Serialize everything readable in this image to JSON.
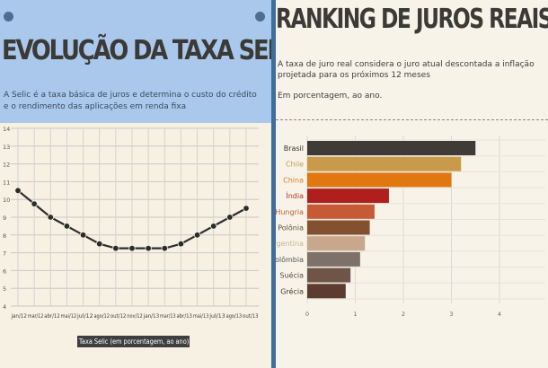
{
  "selic": {
    "title": "EVOLUÇÃO DA TAXA SELIC",
    "description": "A Selic é a taxa básica de juros e determina o custo do crédito e o rendimento das aplicações em renda fixa",
    "legend": "Taxa Selic (em porcentagem, ao ano)"
  },
  "ranking": {
    "title": "RANKING DE JUROS REAIS",
    "description": "A taxa de juro real considera o juro atual descontada a inflação projetada para os próximos 12 meses",
    "unit": "Em porcentagem, ao ano."
  },
  "colors": {
    "left_header_bg": "#a9c8ec",
    "divider": "#3f6e9c",
    "line": "#2e2e2e"
  },
  "chart_data": [
    {
      "type": "line",
      "x": [
        "jan/12",
        "mar/12",
        "abr/12",
        "mai/12",
        "jul/12",
        "ago/12",
        "out/12",
        "nov/12",
        "jan/13",
        "mar/13",
        "abr/13",
        "mai/13",
        "jul/13",
        "ago/13",
        "out/13"
      ],
      "series": [
        {
          "values": [
            10.5,
            9.75,
            9.0,
            8.5,
            8.0,
            7.5,
            7.25,
            7.25,
            7.25,
            7.25,
            7.5,
            8.0,
            8.5,
            9.0,
            9.5
          ]
        }
      ],
      "yticks": [
        4,
        5,
        6,
        7,
        8,
        9,
        10,
        11,
        12,
        13,
        14
      ],
      "ylim": [
        4,
        14
      ],
      "legend": "Taxa Selic (em porcentagem, ao ano)",
      "grid": true
    },
    {
      "type": "bar",
      "orientation": "horizontal",
      "categories": [
        "Brasil",
        "Chile",
        "China",
        "Índia",
        "Hungria",
        "Polônia",
        "Argentina",
        "Colômbia",
        "Suécia",
        "Grécia"
      ],
      "values": [
        3.5,
        3.2,
        3.0,
        1.7,
        1.4,
        1.3,
        1.2,
        1.1,
        0.9,
        0.8
      ],
      "colors": [
        "#403b37",
        "#c89a4a",
        "#e0780f",
        "#b01f1e",
        "#c65a34",
        "#83512f",
        "#c8a78a",
        "#7d716a",
        "#6f5548",
        "#5b3c2e"
      ],
      "label_colors": [
        "#333333",
        "#c99a55",
        "#e07a2a",
        "#b3312b",
        "#c25a32",
        "#6b4a33",
        "#cfb08e",
        "#555555",
        "#5a4a42",
        "#4b3528"
      ],
      "xticks": [
        0,
        1,
        2,
        3,
        4
      ],
      "xlim": [
        0,
        4
      ],
      "grid": true
    }
  ]
}
